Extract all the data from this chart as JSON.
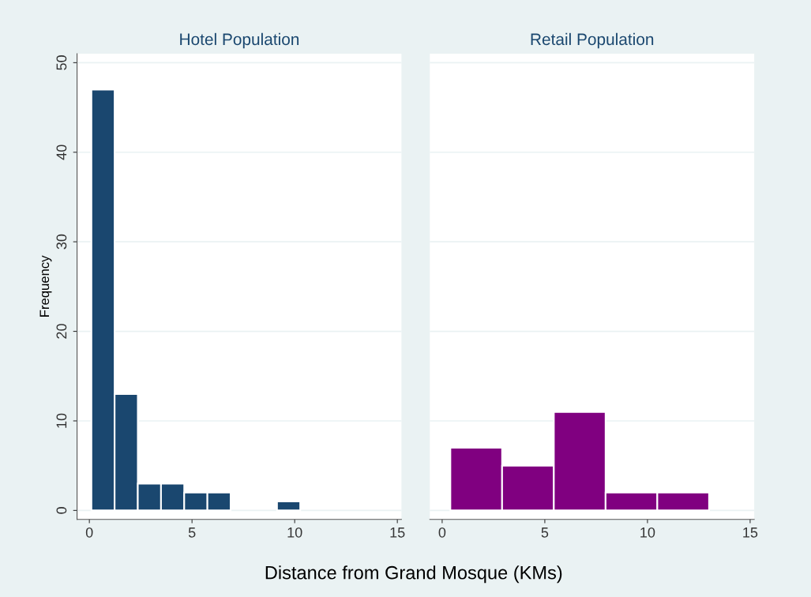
{
  "chart_data": [
    {
      "type": "histogram",
      "title": "Hotel Population",
      "xlabel": "Distance from Grand Mosque (KMs)",
      "ylabel": "Frequency",
      "bins": [
        0.1,
        1.23,
        2.36,
        3.49,
        4.62,
        5.75,
        6.88,
        8.01,
        9.14,
        10.27
      ],
      "values": [
        47,
        13,
        3,
        3,
        2,
        2,
        0,
        0,
        1
      ],
      "color": "#1a476f",
      "xlim": [
        -0.6,
        15.2
      ],
      "xticks": [
        0,
        5,
        10,
        15
      ],
      "ylim": [
        -1,
        51
      ],
      "yticks": [
        0,
        10,
        20,
        30,
        40,
        50
      ],
      "grid": "y"
    },
    {
      "type": "histogram",
      "title": "Retail Population",
      "bins": [
        0.4,
        2.92,
        5.44,
        7.96,
        10.48,
        13.0
      ],
      "values": [
        7,
        5,
        11,
        2,
        2
      ],
      "color": "#800080",
      "xlim": [
        -0.6,
        15.2
      ],
      "xticks": [
        0,
        5,
        10,
        15
      ],
      "ylim": [
        -1,
        51
      ],
      "yticks": [
        0,
        10,
        20,
        30,
        40,
        50
      ],
      "grid": "y",
      "tick_labels": "x"
    }
  ]
}
